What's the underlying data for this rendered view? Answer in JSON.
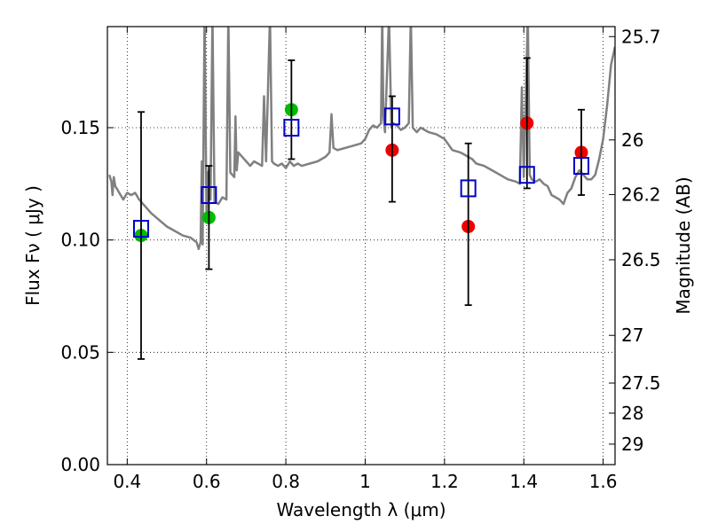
{
  "chart_data": {
    "type": "scatter",
    "xlabel": "Wavelength  λ (μm)",
    "ylabel": "Flux  Fν  ( μJy )",
    "ylabel_right": "Magnitude (AB)",
    "xlim": [
      0.35,
      1.63
    ],
    "ylim": [
      0.0,
      0.195
    ],
    "grid": true,
    "grid_style": "dotted",
    "x_ticks": [
      0.4,
      0.6,
      0.8,
      1.0,
      1.2,
      1.4,
      1.6
    ],
    "x_tick_labels": [
      "0.4",
      "0.6",
      "0.8",
      "1",
      "1.2",
      "1.4",
      "1.6"
    ],
    "y_ticks": [
      0.0,
      0.05,
      0.1,
      0.15
    ],
    "y_tick_labels": [
      "0.00",
      "0.05",
      "0.10",
      "0.15"
    ],
    "right_ticks": [
      {
        "label": "25.7",
        "mag": 25.7
      },
      {
        "label": "26",
        "mag": 26.0
      },
      {
        "label": "26.2",
        "mag": 26.2
      },
      {
        "label": "26.5",
        "mag": 26.5
      },
      {
        "label": "27",
        "mag": 27.0
      },
      {
        "label": "27.5",
        "mag": 27.5
      },
      {
        "label": "28",
        "mag": 28.0
      },
      {
        "label": "29",
        "mag": 29.0
      }
    ],
    "colors": {
      "model": "#808080",
      "green": "#00bb00",
      "red": "#ee0000",
      "box": "#0000cc",
      "err": "#000000"
    },
    "series": [
      {
        "marker": "circle-green",
        "points": [
          {
            "x": 0.435,
            "y": 0.102
          },
          {
            "x": 0.606,
            "y": 0.11
          },
          {
            "x": 0.814,
            "y": 0.158
          }
        ]
      },
      {
        "marker": "circle-red",
        "points": [
          {
            "x": 1.068,
            "y": 0.14
          },
          {
            "x": 1.26,
            "y": 0.106
          },
          {
            "x": 1.408,
            "y": 0.152
          },
          {
            "x": 1.545,
            "y": 0.139
          }
        ]
      },
      {
        "marker": "square-blue",
        "points": [
          {
            "x": 0.435,
            "y": 0.105,
            "y_low": 0.047,
            "y_high": 0.157
          },
          {
            "x": 0.606,
            "y": 0.12,
            "y_low": 0.087,
            "y_high": 0.133
          },
          {
            "x": 0.814,
            "y": 0.15,
            "y_low": 0.136,
            "y_high": 0.18
          },
          {
            "x": 1.068,
            "y": 0.155,
            "y_low": 0.117,
            "y_high": 0.164
          },
          {
            "x": 1.26,
            "y": 0.123,
            "y_low": 0.071,
            "y_high": 0.143
          },
          {
            "x": 1.408,
            "y": 0.129,
            "y_low": 0.123,
            "y_high": 0.181
          },
          {
            "x": 1.545,
            "y": 0.133,
            "y_low": 0.12,
            "y_high": 0.158
          }
        ]
      }
    ],
    "model_spectrum": [
      [
        0.355,
        0.129
      ],
      [
        0.36,
        0.126
      ],
      [
        0.363,
        0.12
      ],
      [
        0.366,
        0.128
      ],
      [
        0.37,
        0.124
      ],
      [
        0.38,
        0.121
      ],
      [
        0.39,
        0.118
      ],
      [
        0.4,
        0.121
      ],
      [
        0.41,
        0.12
      ],
      [
        0.42,
        0.121
      ],
      [
        0.43,
        0.118
      ],
      [
        0.44,
        0.116
      ],
      [
        0.45,
        0.114
      ],
      [
        0.46,
        0.112
      ],
      [
        0.48,
        0.109
      ],
      [
        0.5,
        0.106
      ],
      [
        0.52,
        0.104
      ],
      [
        0.54,
        0.102
      ],
      [
        0.56,
        0.101
      ],
      [
        0.575,
        0.099
      ],
      [
        0.58,
        0.096
      ],
      [
        0.585,
        0.099
      ],
      [
        0.588,
        0.135
      ],
      [
        0.59,
        0.098
      ],
      [
        0.595,
        0.2
      ],
      [
        0.6,
        0.11
      ],
      [
        0.603,
        0.13
      ],
      [
        0.607,
        0.131
      ],
      [
        0.61,
        0.118
      ],
      [
        0.615,
        0.2
      ],
      [
        0.62,
        0.117
      ],
      [
        0.63,
        0.116
      ],
      [
        0.64,
        0.119
      ],
      [
        0.65,
        0.118
      ],
      [
        0.655,
        0.2
      ],
      [
        0.66,
        0.13
      ],
      [
        0.67,
        0.128
      ],
      [
        0.673,
        0.155
      ],
      [
        0.676,
        0.131
      ],
      [
        0.68,
        0.139
      ],
      [
        0.69,
        0.137
      ],
      [
        0.7,
        0.135
      ],
      [
        0.71,
        0.133
      ],
      [
        0.72,
        0.135
      ],
      [
        0.73,
        0.134
      ],
      [
        0.74,
        0.133
      ],
      [
        0.745,
        0.164
      ],
      [
        0.75,
        0.135
      ],
      [
        0.76,
        0.2
      ],
      [
        0.765,
        0.135
      ],
      [
        0.77,
        0.134
      ],
      [
        0.78,
        0.133
      ],
      [
        0.79,
        0.134
      ],
      [
        0.8,
        0.132
      ],
      [
        0.81,
        0.135
      ],
      [
        0.82,
        0.133
      ],
      [
        0.83,
        0.134
      ],
      [
        0.84,
        0.133
      ],
      [
        0.86,
        0.134
      ],
      [
        0.88,
        0.135
      ],
      [
        0.9,
        0.137
      ],
      [
        0.91,
        0.139
      ],
      [
        0.915,
        0.156
      ],
      [
        0.92,
        0.141
      ],
      [
        0.93,
        0.14
      ],
      [
        0.95,
        0.141
      ],
      [
        0.97,
        0.142
      ],
      [
        0.99,
        0.143
      ],
      [
        1.0,
        0.145
      ],
      [
        1.01,
        0.149
      ],
      [
        1.02,
        0.151
      ],
      [
        1.03,
        0.15
      ],
      [
        1.04,
        0.152
      ],
      [
        1.043,
        0.2
      ],
      [
        1.046,
        0.155
      ],
      [
        1.05,
        0.148
      ],
      [
        1.06,
        0.2
      ],
      [
        1.066,
        0.15
      ],
      [
        1.07,
        0.152
      ],
      [
        1.08,
        0.151
      ],
      [
        1.09,
        0.149
      ],
      [
        1.1,
        0.15
      ],
      [
        1.11,
        0.152
      ],
      [
        1.115,
        0.2
      ],
      [
        1.12,
        0.15
      ],
      [
        1.13,
        0.148
      ],
      [
        1.14,
        0.15
      ],
      [
        1.16,
        0.148
      ],
      [
        1.18,
        0.147
      ],
      [
        1.2,
        0.145
      ],
      [
        1.22,
        0.14
      ],
      [
        1.24,
        0.139
      ],
      [
        1.25,
        0.138
      ],
      [
        1.27,
        0.136
      ],
      [
        1.28,
        0.134
      ],
      [
        1.3,
        0.133
      ],
      [
        1.32,
        0.131
      ],
      [
        1.34,
        0.129
      ],
      [
        1.36,
        0.127
      ],
      [
        1.38,
        0.126
      ],
      [
        1.39,
        0.125
      ],
      [
        1.395,
        0.168
      ],
      [
        1.4,
        0.128
      ],
      [
        1.41,
        0.2
      ],
      [
        1.415,
        0.129
      ],
      [
        1.42,
        0.127
      ],
      [
        1.43,
        0.126
      ],
      [
        1.44,
        0.127
      ],
      [
        1.45,
        0.125
      ],
      [
        1.46,
        0.124
      ],
      [
        1.47,
        0.12
      ],
      [
        1.48,
        0.119
      ],
      [
        1.49,
        0.118
      ],
      [
        1.5,
        0.116
      ],
      [
        1.51,
        0.121
      ],
      [
        1.52,
        0.123
      ],
      [
        1.53,
        0.128
      ],
      [
        1.54,
        0.131
      ],
      [
        1.55,
        0.129
      ],
      [
        1.56,
        0.127
      ],
      [
        1.57,
        0.127
      ],
      [
        1.58,
        0.129
      ],
      [
        1.59,
        0.136
      ],
      [
        1.6,
        0.145
      ],
      [
        1.61,
        0.16
      ],
      [
        1.62,
        0.178
      ],
      [
        1.63,
        0.186
      ]
    ]
  }
}
